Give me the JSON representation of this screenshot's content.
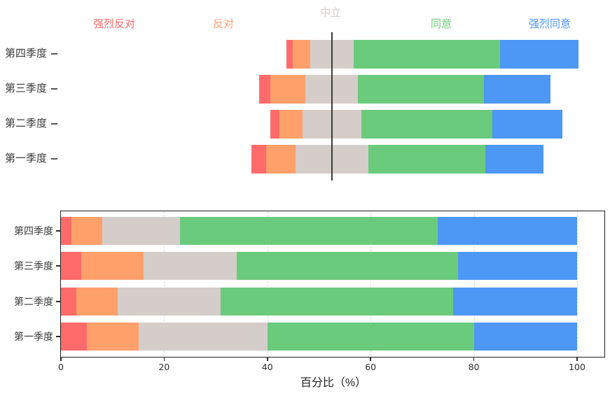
{
  "figure": {
    "background": "#ffffff",
    "text_color": "#3a3a3a",
    "axis_color": "#1f1f1f",
    "neutral_line_color": "#3c3c3c",
    "grid_color": "#e0dcdb"
  },
  "chart_data": [
    {
      "type": "bar",
      "variant": "horizontal-diverging-stacked",
      "title": "",
      "categories": [
        "第四季度",
        "第三季度",
        "第二季度",
        "第一季度"
      ],
      "series": [
        {
          "name": "强烈反对",
          "color": "#ff6a6a",
          "values": [
            2,
            4,
            3,
            5
          ]
        },
        {
          "name": "反对",
          "color": "#ffa06b",
          "values": [
            6,
            12,
            8,
            10
          ]
        },
        {
          "name": "中立",
          "color": "#d4cdca",
          "values": [
            15,
            18,
            20,
            25
          ]
        },
        {
          "name": "同意",
          "color": "#6bcb7c",
          "values": [
            50,
            43,
            45,
            40
          ]
        },
        {
          "name": "强烈同意",
          "color": "#4d97f5",
          "values": [
            27,
            23,
            24,
            20
          ]
        }
      ],
      "neutral_centered": true,
      "center_reference": "middle of 中立 segment aligned to vertical line",
      "legend_position": "top",
      "grid": false,
      "xaxis_visible": false
    },
    {
      "type": "bar",
      "variant": "horizontal-stacked",
      "title": "",
      "categories": [
        "第四季度",
        "第三季度",
        "第二季度",
        "第一季度"
      ],
      "series": [
        {
          "name": "强烈反对",
          "color": "#ff6a6a",
          "values": [
            2,
            4,
            3,
            5
          ]
        },
        {
          "name": "反对",
          "color": "#ffa06b",
          "values": [
            6,
            12,
            8,
            10
          ]
        },
        {
          "name": "中立",
          "color": "#d4cdca",
          "values": [
            15,
            18,
            20,
            25
          ]
        },
        {
          "name": "同意",
          "color": "#6bcb7c",
          "values": [
            50,
            43,
            45,
            40
          ]
        },
        {
          "name": "强烈同意",
          "color": "#4d97f5",
          "values": [
            27,
            23,
            24,
            20
          ]
        }
      ],
      "xlabel": "百分比（%）",
      "xticks": [
        0,
        20,
        40,
        60,
        80,
        100
      ],
      "xlim": [
        0,
        105.4
      ],
      "grid": true,
      "grid_style": "dashed",
      "legend_position": "none"
    }
  ]
}
